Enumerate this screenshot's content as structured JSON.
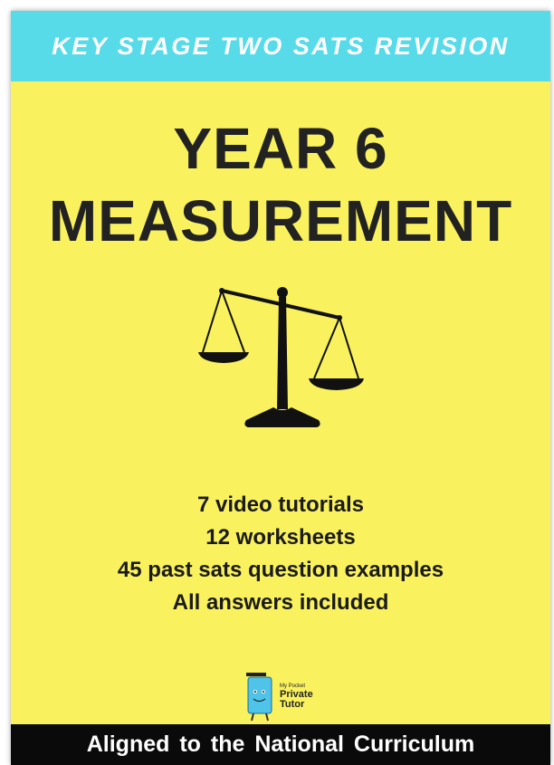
{
  "banner": {
    "text": "KEY STAGE TWO SATS REVISION"
  },
  "title": {
    "lines": [
      "YEAR 6",
      "MEASUREMENT"
    ]
  },
  "features": [
    "7 video tutorials",
    "12 worksheets",
    "45 past sats question examples",
    "All answers included"
  ],
  "logo": {
    "small": "My Pocket",
    "name_lines": [
      "Private",
      "Tutor"
    ]
  },
  "footer": {
    "text": "Aligned to the National Curriculum"
  }
}
